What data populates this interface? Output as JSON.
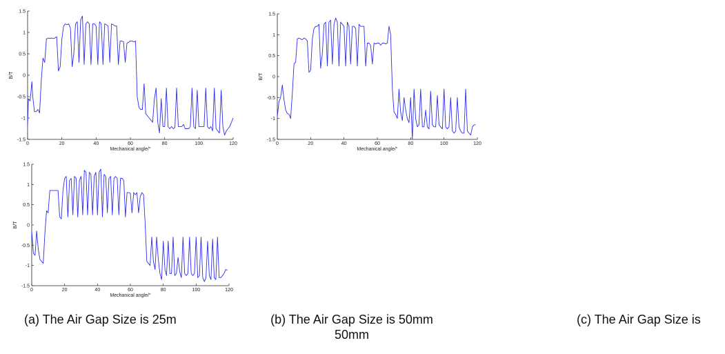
{
  "chart_data": [
    {
      "type": "line",
      "xlabel": "Mechanical angle/°",
      "ylabel": "B/T",
      "xlim": [
        0,
        120
      ],
      "ylim": [
        -1.5,
        1.5
      ],
      "xticks": [
        "0",
        "20",
        "40",
        "60",
        "80",
        "100",
        "120"
      ],
      "yticks": [
        "-1.5",
        "-1",
        "-0.5",
        "0",
        "0.5",
        "1",
        "1.5"
      ],
      "line_color": "#2c2cf0",
      "series": [
        {
          "x": [
            0,
            0.5,
            1.5,
            2.5,
            3,
            4,
            5,
            6,
            7,
            8,
            9,
            10,
            11,
            12,
            13,
            14,
            14.5,
            15.5,
            17,
            18,
            19,
            20,
            21,
            22,
            23,
            24,
            25,
            26,
            27,
            28,
            29,
            30,
            31,
            32,
            33,
            34,
            35,
            36,
            37,
            38,
            39,
            40,
            41,
            42,
            43,
            44,
            45,
            46,
            47,
            48,
            49,
            50,
            51,
            52,
            53,
            54,
            55,
            56,
            57,
            58,
            59,
            60,
            61,
            62,
            63,
            64,
            65,
            66,
            67,
            68,
            69,
            70,
            71,
            72,
            73,
            74,
            75,
            76,
            77,
            78,
            79,
            80,
            81,
            82,
            83,
            84,
            85,
            86,
            87,
            88,
            89,
            90,
            91,
            92,
            93,
            94,
            95,
            96,
            97,
            98,
            99,
            100,
            101,
            102,
            103,
            104,
            105,
            106,
            107,
            108,
            109,
            110,
            111,
            112,
            113,
            114,
            115,
            116,
            117,
            118,
            119,
            120
          ],
          "y": [
            -1.2,
            -0.55,
            -0.6,
            -0.15,
            -0.5,
            -0.85,
            -0.85,
            -0.8,
            -0.88,
            -0.1,
            0.4,
            0.3,
            0.85,
            0.87,
            0.86,
            0.87,
            0.86,
            0.86,
            0.9,
            0.1,
            0.2,
            0.85,
            1.15,
            1.2,
            1.18,
            1.2,
            1.1,
            0.2,
            0.5,
            1.2,
            1.25,
            0.3,
            1.3,
            1.38,
            0.25,
            1.2,
            1.25,
            1.2,
            0.25,
            1.2,
            1.2,
            1.15,
            0.25,
            1.25,
            1.2,
            0.25,
            1.2,
            1.18,
            1.15,
            0.3,
            1.2,
            1.18,
            1.15,
            1.15,
            0.25,
            0.8,
            0.8,
            0.78,
            0.3,
            0.75,
            0.77,
            0.8,
            0.8,
            0.78,
            0.8,
            -0.5,
            -0.75,
            -0.8,
            -0.8,
            -0.2,
            -0.9,
            -0.95,
            -1.0,
            -1.05,
            -1.1,
            -0.55,
            -0.3,
            -1.1,
            -1.35,
            -0.55,
            -1.2,
            -1.2,
            -0.3,
            -1.2,
            -1.25,
            -1.2,
            -1.25,
            -1.22,
            -0.3,
            -1.2,
            -1.2,
            -1.2,
            -1.15,
            -1.25,
            -1.25,
            -1.25,
            -1.2,
            -0.3,
            -1.2,
            -1.25,
            -0.35,
            -1.2,
            -1.2,
            -1.2,
            -1.2,
            -0.3,
            -1.2,
            -1.25,
            -1.2,
            -1.3,
            -0.3,
            -1.25,
            -1.3,
            -1.35,
            -0.35,
            -1.2,
            -1.4,
            -1.3,
            -1.25,
            -1.2,
            -1.1,
            -1.0
          ]
        }
      ]
    },
    {
      "type": "line",
      "xlabel": "Mechanical angle/°",
      "ylabel": "B/T",
      "xlim": [
        0,
        120
      ],
      "ylim": [
        -1.5,
        1.5
      ],
      "xticks": [
        "0",
        "20",
        "40",
        "60",
        "80",
        "100",
        "120"
      ],
      "yticks": [
        "-1.5",
        "-1",
        "-0.5",
        "0",
        "0.5",
        "1",
        "1.5"
      ],
      "line_color": "#2c2cf0",
      "series": [
        {
          "x": [
            0,
            1,
            2,
            3,
            4,
            5,
            6,
            7,
            8,
            9,
            10,
            11,
            12,
            13,
            14,
            15,
            16,
            17,
            18,
            19,
            20,
            21,
            22,
            23,
            24,
            25,
            26,
            27,
            28,
            29,
            30,
            31,
            32,
            33,
            34,
            35,
            36,
            37,
            38,
            39,
            40,
            41,
            42,
            43,
            44,
            45,
            46,
            47,
            48,
            49,
            50,
            51,
            52,
            53,
            54,
            55,
            56,
            57,
            58,
            59,
            60,
            61,
            62,
            63,
            64,
            65,
            66,
            67,
            68,
            69,
            70,
            71,
            72,
            73,
            74,
            75,
            76,
            77,
            78,
            79,
            80,
            81,
            82,
            83,
            84,
            85,
            86,
            87,
            88,
            89,
            90,
            91,
            92,
            93,
            94,
            95,
            96,
            97,
            98,
            99,
            100,
            101,
            102,
            103,
            104,
            105,
            106,
            107,
            108,
            109,
            110,
            111,
            112,
            113,
            114,
            115,
            116,
            117,
            118,
            119
          ],
          "y": [
            -0.95,
            -0.6,
            -0.5,
            -0.2,
            -0.55,
            -0.8,
            -0.88,
            -0.9,
            -1.0,
            -0.4,
            0.3,
            0.35,
            0.9,
            0.92,
            0.9,
            0.88,
            0.92,
            0.9,
            0.85,
            0.1,
            0.15,
            0.9,
            1.15,
            1.2,
            1.2,
            1.25,
            0.2,
            0.55,
            1.25,
            1.3,
            0.25,
            1.3,
            1.35,
            0.3,
            1.25,
            1.4,
            1.3,
            0.25,
            1.3,
            1.25,
            1.2,
            0.25,
            1.3,
            1.2,
            0.3,
            1.2,
            1.2,
            1.15,
            0.25,
            1.25,
            1.2,
            1.2,
            1.2,
            0.25,
            0.8,
            0.8,
            0.75,
            0.3,
            0.8,
            0.78,
            0.8,
            0.8,
            0.75,
            0.8,
            0.8,
            0.78,
            0.8,
            1.2,
            1.0,
            -0.3,
            -0.85,
            -0.9,
            -1.0,
            -0.3,
            -0.85,
            -1.05,
            -0.5,
            -0.8,
            -1.0,
            -1.1,
            -0.5,
            -1.5,
            -0.3,
            -1.0,
            -1.2,
            -1.15,
            -0.3,
            -1.2,
            -1.2,
            -0.8,
            -1.2,
            -1.25,
            -0.35,
            -1.15,
            -1.2,
            -1.2,
            -0.45,
            -1.15,
            -1.2,
            -1.25,
            -0.3,
            -1.2,
            -1.25,
            -1.2,
            -0.5,
            -1.3,
            -1.35,
            -1.3,
            -0.5,
            -1.2,
            -1.3,
            -1.35,
            -1.35,
            -0.3,
            -1.3,
            -1.35,
            -1.4,
            -1.2,
            -1.15,
            -1.15
          ]
        }
      ]
    },
    {
      "type": "line",
      "xlabel": "Mechanical angle/°",
      "ylabel": "B/T",
      "xlim": [
        0,
        120
      ],
      "ylim": [
        -1.5,
        1.5
      ],
      "xticks": [
        "0",
        "20",
        "40",
        "60",
        "80",
        "100",
        "120"
      ],
      "yticks": [
        "-1.5",
        "-1",
        "-0.5",
        "0",
        "0.5",
        "1",
        "1.5"
      ],
      "line_color": "#2c2cf0",
      "series": [
        {
          "x": [
            0,
            1,
            2,
            3,
            4,
            5,
            6,
            7,
            8,
            9,
            10,
            11,
            12,
            13,
            14,
            15,
            16,
            17,
            18,
            19,
            20,
            21,
            22,
            23,
            24,
            25,
            26,
            27,
            28,
            29,
            30,
            31,
            32,
            33,
            34,
            35,
            36,
            37,
            38,
            39,
            40,
            41,
            42,
            43,
            44,
            45,
            46,
            47,
            48,
            49,
            50,
            51,
            52,
            53,
            54,
            55,
            56,
            57,
            58,
            59,
            60,
            61,
            62,
            63,
            64,
            65,
            66,
            67,
            68,
            69,
            70,
            71,
            72,
            73,
            74,
            75,
            76,
            77,
            78,
            79,
            80,
            81,
            82,
            83,
            84,
            85,
            86,
            87,
            88,
            89,
            90,
            91,
            92,
            93,
            94,
            95,
            96,
            97,
            98,
            99,
            100,
            101,
            102,
            103,
            104,
            105,
            106,
            107,
            108,
            109,
            110,
            111,
            112,
            113,
            114,
            115,
            116,
            117,
            118,
            119
          ],
          "y": [
            -0.15,
            -0.7,
            -0.75,
            -0.15,
            -0.6,
            -0.85,
            -0.9,
            -0.95,
            -0.2,
            0.35,
            0.3,
            0.85,
            0.85,
            0.85,
            0.85,
            0.85,
            0.85,
            0.2,
            0.15,
            0.85,
            1.15,
            1.2,
            0.2,
            1.1,
            1.15,
            0.25,
            1.2,
            1.15,
            0.2,
            1.1,
            1.2,
            0.25,
            1.35,
            1.3,
            0.25,
            1.3,
            1.25,
            0.25,
            1.2,
            1.3,
            0.25,
            1.3,
            1.38,
            0.2,
            1.25,
            1.2,
            0.3,
            1.15,
            1.2,
            0.25,
            1.15,
            1.2,
            1.15,
            0.25,
            1.15,
            1.15,
            1.1,
            0.2,
            0.8,
            0.8,
            0.78,
            0.3,
            0.8,
            0.75,
            0.8,
            0.3,
            0.7,
            0.8,
            0.75,
            0.05,
            -0.9,
            -0.95,
            -1.0,
            -0.3,
            -0.9,
            -1.1,
            -0.3,
            -0.85,
            -1.2,
            -1.35,
            -0.4,
            -1.1,
            -1.25,
            -0.4,
            -1.2,
            -1.2,
            -0.3,
            -1.25,
            -1.2,
            -0.8,
            -1.15,
            -1.3,
            -0.3,
            -1.2,
            -1.25,
            -1.2,
            -0.3,
            -1.2,
            -1.25,
            -1.2,
            -0.3,
            -1.3,
            -1.25,
            -0.3,
            -1.3,
            -1.4,
            -1.3,
            -0.4,
            -1.25,
            -1.35,
            -0.35,
            -1.3,
            -1.35,
            -0.3,
            -1.3,
            -1.3,
            -1.25,
            -1.2,
            -1.1,
            -1.12
          ]
        }
      ]
    }
  ],
  "captions": {
    "a": "(a) The Air Gap Size is 25m",
    "b_line1": "(b) The Air Gap Size is 50mm",
    "b_line2": "50mm",
    "c": "(c) The Air Gap Size is"
  }
}
